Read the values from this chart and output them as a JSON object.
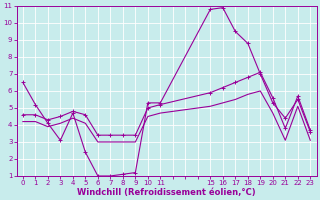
{
  "xlabel": "Windchill (Refroidissement éolien,°C)",
  "background_color": "#c8ecec",
  "grid_color": "#b0d8d8",
  "line_color": "#990099",
  "xlim": [
    -0.5,
    23.5
  ],
  "ylim": [
    1,
    11
  ],
  "yticks": [
    1,
    2,
    3,
    4,
    5,
    6,
    7,
    8,
    9,
    10,
    11
  ],
  "xtick_positions": [
    0,
    1,
    2,
    3,
    4,
    5,
    6,
    7,
    8,
    9,
    10,
    11,
    12,
    13,
    14,
    15,
    16,
    17,
    18,
    19,
    20,
    21,
    22,
    23
  ],
  "xtick_labels": [
    "0",
    "1",
    "2",
    "3",
    "4",
    "5",
    "6",
    "7",
    "8",
    "9",
    "10",
    "11",
    "",
    "",
    "",
    "15",
    "16",
    "17",
    "18",
    "19",
    "20",
    "21",
    "22",
    "23"
  ],
  "series1_x": [
    0,
    1,
    2,
    3,
    4,
    5,
    6,
    7,
    8,
    9,
    10,
    11,
    15,
    16,
    17,
    18,
    19,
    20,
    21,
    22,
    23
  ],
  "series1_y": [
    6.5,
    5.2,
    4.1,
    3.1,
    4.7,
    2.4,
    1.0,
    1.0,
    1.1,
    1.2,
    5.3,
    5.3,
    10.8,
    10.9,
    9.5,
    8.8,
    7.0,
    5.3,
    4.4,
    5.5,
    3.6
  ],
  "series2_x": [
    0,
    1,
    2,
    3,
    4,
    5,
    6,
    7,
    8,
    9,
    10,
    11,
    15,
    16,
    17,
    18,
    19,
    20,
    21,
    22,
    23
  ],
  "series2_y": [
    4.6,
    4.6,
    4.3,
    4.5,
    4.8,
    4.6,
    3.4,
    3.4,
    3.4,
    3.4,
    5.0,
    5.2,
    5.9,
    6.2,
    6.5,
    6.8,
    7.1,
    5.6,
    3.8,
    5.7,
    3.7
  ],
  "series3_x": [
    0,
    1,
    2,
    3,
    4,
    5,
    6,
    7,
    8,
    9,
    10,
    11,
    15,
    16,
    17,
    18,
    19,
    20,
    21,
    22,
    23
  ],
  "series3_y": [
    4.2,
    4.2,
    3.9,
    4.1,
    4.4,
    4.1,
    3.0,
    3.0,
    3.0,
    3.0,
    4.5,
    4.7,
    5.1,
    5.3,
    5.5,
    5.8,
    6.0,
    4.7,
    3.1,
    5.1,
    3.1
  ],
  "marker_size": 2.5,
  "linewidth": 0.8,
  "tick_fontsize": 5,
  "xlabel_fontsize": 6
}
